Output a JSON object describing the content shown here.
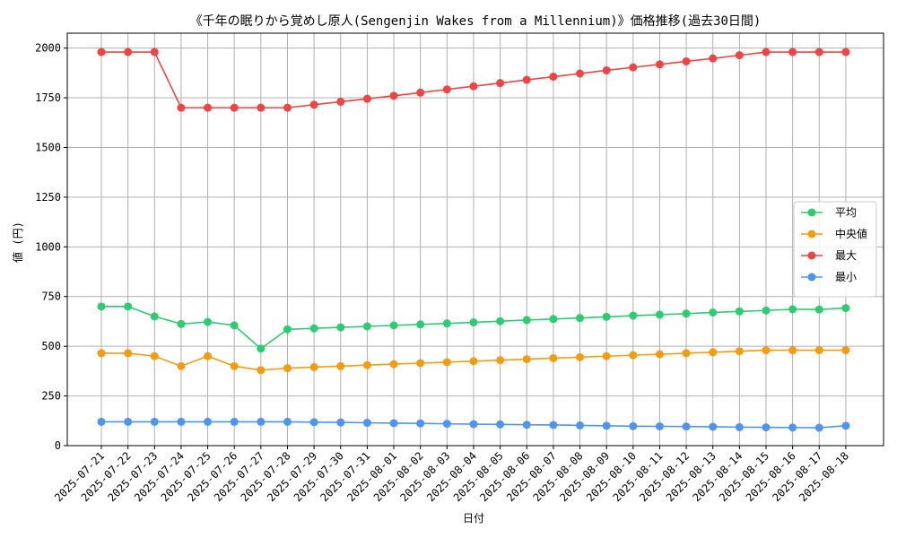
{
  "chart_data": {
    "type": "line",
    "title": "《千年の眠りから覚めし原人(Sengenjin Wakes from a Millennium)》価格推移(過去30日間)",
    "xlabel": "日付",
    "ylabel": "値 (円)",
    "ylim": [
      0,
      2075
    ],
    "yticks": [
      0,
      250,
      500,
      750,
      1000,
      1250,
      1500,
      1750,
      2000
    ],
    "grid": true,
    "legend_position": "center-right",
    "categories": [
      "2025-07-21",
      "2025-07-22",
      "2025-07-23",
      "2025-07-24",
      "2025-07-25",
      "2025-07-26",
      "2025-07-27",
      "2025-07-28",
      "2025-07-29",
      "2025-07-30",
      "2025-07-31",
      "2025-08-01",
      "2025-08-02",
      "2025-08-03",
      "2025-08-04",
      "2025-08-05",
      "2025-08-06",
      "2025-08-07",
      "2025-08-08",
      "2025-08-09",
      "2025-08-10",
      "2025-08-11",
      "2025-08-12",
      "2025-08-13",
      "2025-08-14",
      "2025-08-15",
      "2025-08-16",
      "2025-08-17",
      "2025-08-18"
    ],
    "series": [
      {
        "name": "平均",
        "color": "#2ecc71",
        "values": [
          700,
          700,
          650,
          612,
          622,
          605,
          488,
          585,
          590,
          595,
          600,
          605,
          610,
          615,
          620,
          626,
          632,
          637,
          642,
          648,
          654,
          659,
          664,
          670,
          675,
          680,
          686,
          685,
          692
        ]
      },
      {
        "name": "中央値",
        "color": "#f39c12",
        "values": [
          465,
          465,
          450,
          400,
          450,
          400,
          380,
          390,
          395,
          400,
          405,
          410,
          415,
          420,
          425,
          430,
          435,
          440,
          445,
          450,
          455,
          460,
          465,
          470,
          475,
          480,
          480,
          480,
          480
        ]
      },
      {
        "name": "最大",
        "color": "#ef4444",
        "values": [
          1980,
          1980,
          1980,
          1700,
          1700,
          1700,
          1700,
          1700,
          1715,
          1730,
          1745,
          1760,
          1776,
          1792,
          1808,
          1824,
          1840,
          1856,
          1872,
          1888,
          1903,
          1918,
          1933,
          1948,
          1964,
          1980,
          1980,
          1980,
          1980
        ]
      },
      {
        "name": "最小",
        "color": "#4f95f0",
        "values": [
          120,
          120,
          120,
          120,
          120,
          120,
          120,
          120,
          118,
          117,
          115,
          113,
          112,
          110,
          108,
          107,
          105,
          104,
          102,
          100,
          98,
          97,
          96,
          95,
          93,
          92,
          91,
          90,
          100
        ]
      }
    ]
  }
}
